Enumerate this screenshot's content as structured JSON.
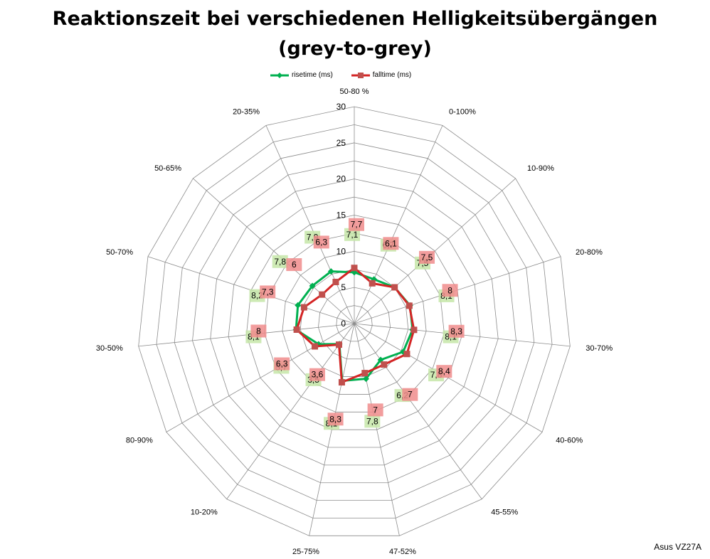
{
  "chart_data": {
    "type": "radar",
    "title": "Reaktionszeit bei verschiedenen Helligkeitsübergängen",
    "subtitle": "(grey-to-grey)",
    "categories": [
      "50-80 %",
      "0-100%",
      "10-90%",
      "20-80%",
      "30-70%",
      "40-60%",
      "45-55%",
      "47-52%",
      "25-75%",
      "10-20%",
      "80-90%",
      "30-50%",
      "50-70%",
      "50-65%",
      "20-35%"
    ],
    "rlim": [
      0,
      30
    ],
    "rticks": [
      "0",
      "5",
      "10",
      "15",
      "20",
      "25",
      "30"
    ],
    "grid": true,
    "legend": "top",
    "series": [
      {
        "name": "risetime (ms)",
        "color": "#00B050",
        "label_bg": "#C6E6A8",
        "values": [
          7.1,
          6.7,
          7.5,
          8.1,
          8.1,
          7.8,
          6.2,
          7.8,
          8.1,
          3.5,
          5.7,
          8.1,
          8.2,
          7.8,
          7.9
        ],
        "labels": [
          "7,1",
          "6,7",
          "7,5",
          "8,1",
          "8,1",
          "7,8",
          "6,2",
          "7,8",
          "8,1",
          "3,5",
          "5,7",
          "8,1",
          "8,2",
          "7,8",
          "7,9"
        ]
      },
      {
        "name": "falltime (ms)",
        "color": "#D42424",
        "label_bg": "#F08C8C",
        "values": [
          7.7,
          6.1,
          7.5,
          8.0,
          8.3,
          8.4,
          7.0,
          7.0,
          8.3,
          3.6,
          6.3,
          8.0,
          7.3,
          6.0,
          6.3
        ],
        "labels": [
          "7,7",
          "6,1",
          "7,5",
          "8",
          "8,3",
          "8,4",
          "7",
          "7",
          "8,3",
          "3,6",
          "6,3",
          "8",
          "7,3",
          "6",
          "6,3"
        ]
      }
    ]
  },
  "watermark": "Asus VZ27A"
}
